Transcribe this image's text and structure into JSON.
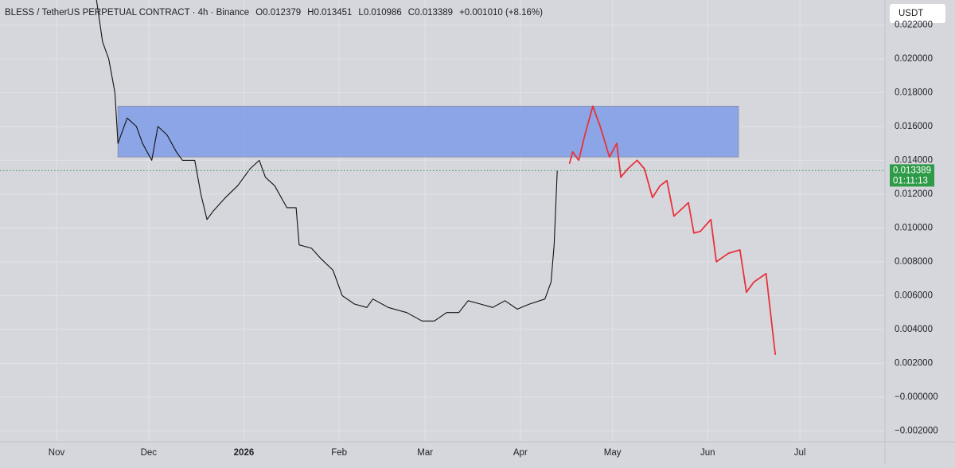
{
  "chart_data": {
    "type": "line",
    "title": "BLESS / TetherUS PERPETUAL CONTRACT · 4h · Binance",
    "ohlc_text": [
      "O0.012379",
      "H0.013451",
      "L0.010986",
      "C0.013389",
      "+0.001010 (+8.16%)"
    ],
    "currency_button": "USDT",
    "current_price": 0.013389,
    "countdown": "01:11:13",
    "current_price_color": "#2e9b48",
    "zone": {
      "x": [
        20,
        222
      ],
      "y": [
        0.0142,
        0.0172
      ],
      "color": "#7f9ce8"
    },
    "xlim": [
      -18.4,
      269.7
    ],
    "xticks": [
      {
        "value": 0,
        "label": "Nov"
      },
      {
        "value": 30,
        "label": "Dec"
      },
      {
        "value": 61,
        "label": "2026"
      },
      {
        "value": 92,
        "label": "Feb"
      },
      {
        "value": 120,
        "label": "Mar"
      },
      {
        "value": 151,
        "label": "Apr"
      },
      {
        "value": 181,
        "label": "May"
      },
      {
        "value": 212,
        "label": "Jun"
      },
      {
        "value": 242,
        "label": "Jul"
      }
    ],
    "ylim": [
      -0.00264,
      0.02348
    ],
    "yticks": [
      {
        "value": -0.002,
        "label": "−0.002000"
      },
      {
        "value": 0,
        "label": "−0.000000"
      },
      {
        "value": 0.002,
        "label": "0.002000"
      },
      {
        "value": 0.004,
        "label": "0.004000"
      },
      {
        "value": 0.006,
        "label": "0.006000"
      },
      {
        "value": 0.008,
        "label": "0.008000"
      },
      {
        "value": 0.01,
        "label": "0.010000"
      },
      {
        "value": 0.012,
        "label": "0.012000"
      },
      {
        "value": 0.014,
        "label": "0.014000"
      },
      {
        "value": 0.016,
        "label": "0.016000"
      },
      {
        "value": 0.018,
        "label": "0.018000"
      },
      {
        "value": 0.02,
        "label": "0.020000"
      },
      {
        "value": 0.022,
        "label": "0.022000"
      }
    ],
    "grid": true,
    "series": [
      {
        "color": "#111111",
        "x": [
          13,
          15,
          17,
          19,
          20,
          23,
          26,
          28,
          31,
          33,
          36,
          39,
          41,
          45,
          47,
          49,
          51,
          55,
          59,
          63,
          66,
          68,
          71,
          75,
          78,
          79,
          83,
          86,
          90,
          93,
          97,
          101,
          103,
          108,
          114,
          119,
          123,
          127,
          131,
          134,
          138,
          142,
          146,
          150,
          154,
          159,
          161,
          162,
          163
        ],
        "values": [
          0.0235,
          0.021,
          0.02,
          0.018,
          0.015,
          0.0165,
          0.016,
          0.015,
          0.014,
          0.016,
          0.0155,
          0.0145,
          0.014,
          0.014,
          0.012,
          0.0105,
          0.011,
          0.0118,
          0.0125,
          0.0135,
          0.014,
          0.013,
          0.0125,
          0.0112,
          0.0112,
          0.009,
          0.0088,
          0.0082,
          0.0075,
          0.006,
          0.0055,
          0.0053,
          0.0058,
          0.0053,
          0.005,
          0.0045,
          0.0045,
          0.005,
          0.005,
          0.0057,
          0.0055,
          0.0053,
          0.0057,
          0.0052,
          0.0055,
          0.0058,
          0.0068,
          0.009,
          0.0134
        ]
      },
      {
        "color": "#e8323a",
        "x": [
          167,
          168,
          170,
          172,
          174.6,
          177,
          180,
          182.4,
          183.7,
          186,
          189,
          191.4,
          194,
          196.5,
          198.7,
          201,
          204,
          205.7,
          207.5,
          209.6,
          213,
          214.8,
          218.7,
          222.5,
          224.6,
          227,
          231,
          234
        ],
        "values": [
          0.0138,
          0.0145,
          0.014,
          0.0155,
          0.0172,
          0.016,
          0.0142,
          0.015,
          0.013,
          0.0135,
          0.014,
          0.0135,
          0.0118,
          0.0125,
          0.0128,
          0.0107,
          0.0112,
          0.0115,
          0.0097,
          0.0098,
          0.0105,
          0.008,
          0.0085,
          0.0087,
          0.0062,
          0.0068,
          0.0073,
          0.0025
        ]
      }
    ]
  }
}
